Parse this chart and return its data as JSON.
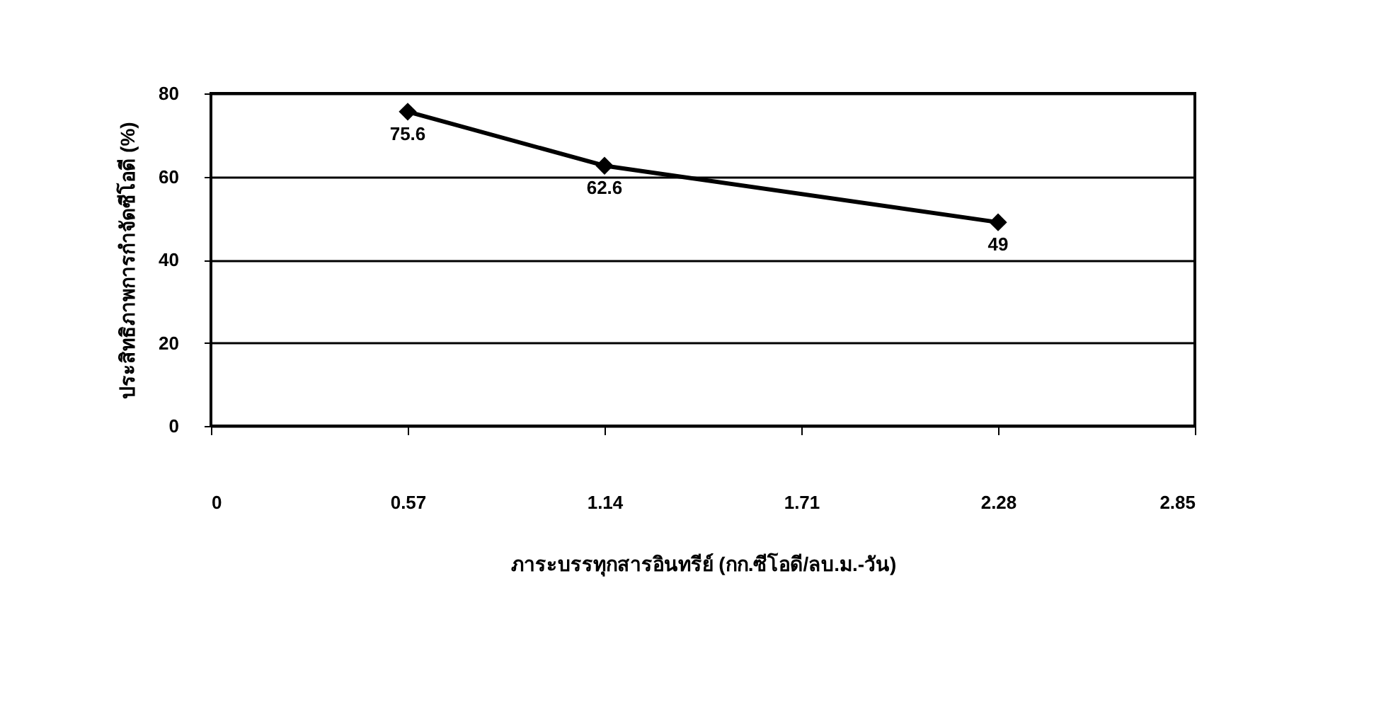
{
  "chart_data": {
    "type": "line",
    "xlabel": "ภาระบรรทุกสารอินทรีย์ (กก.ซีโอดี/ลบ.ม.-วัน)",
    "ylabel": "ประสิทธิภาพการกำจัดซีโอดี (%)",
    "x": [
      0.57,
      1.14,
      2.28
    ],
    "series": [
      {
        "color": "#000000",
        "values": [
          75.6,
          62.6,
          49
        ]
      }
    ],
    "xlim": [
      0,
      2.85
    ],
    "xticks": [
      0,
      0.57,
      1.14,
      1.71,
      2.28,
      2.85
    ],
    "ylim": [
      0,
      80
    ],
    "yticks": [
      0,
      20,
      40,
      60,
      80
    ],
    "grid": "y",
    "marker": "diamond",
    "data_labels": true,
    "legend": false
  }
}
